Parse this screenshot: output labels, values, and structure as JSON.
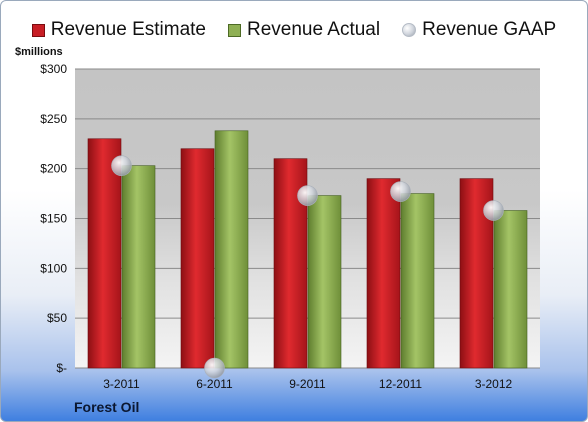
{
  "chart_data": {
    "type": "bar",
    "unit_label": "$millions",
    "categories": [
      "3-2011",
      "6-2011",
      "9-2011",
      "12-2011",
      "3-2012"
    ],
    "series": [
      {
        "name": "Revenue Estimate",
        "kind": "bar",
        "color": "#c81e25",
        "values": [
          230,
          220,
          210,
          190,
          190
        ]
      },
      {
        "name": "Revenue Actual",
        "kind": "bar",
        "color": "#8fb054",
        "values": [
          203,
          238,
          173,
          175,
          158
        ]
      },
      {
        "name": "Revenue GAAP",
        "kind": "marker",
        "color": "#c9ced6",
        "values": [
          203,
          0,
          173,
          177,
          158
        ]
      }
    ],
    "ylim": [
      0,
      300
    ],
    "y_ticks": [
      0,
      50,
      100,
      150,
      200,
      250,
      300
    ],
    "y_tick_labels": [
      "$-",
      "$50",
      "$100",
      "$150",
      "$200",
      "$250",
      "$300"
    ],
    "grid": true,
    "legend_position": "top"
  },
  "footer": {
    "company": "Forest Oil"
  }
}
